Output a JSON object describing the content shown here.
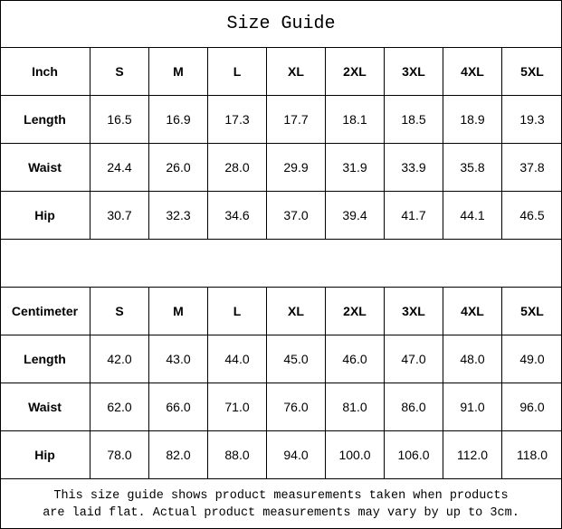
{
  "title": "Size Guide",
  "tables": [
    {
      "unit": "Inch",
      "sizes": [
        "S",
        "M",
        "L",
        "XL",
        "2XL",
        "3XL",
        "4XL",
        "5XL"
      ],
      "rows": [
        {
          "label": "Length",
          "values": [
            "16.5",
            "16.9",
            "17.3",
            "17.7",
            "18.1",
            "18.5",
            "18.9",
            "19.3"
          ]
        },
        {
          "label": "Waist",
          "values": [
            "24.4",
            "26.0",
            "28.0",
            "29.9",
            "31.9",
            "33.9",
            "35.8",
            "37.8"
          ]
        },
        {
          "label": "Hip",
          "values": [
            "30.7",
            "32.3",
            "34.6",
            "37.0",
            "39.4",
            "41.7",
            "44.1",
            "46.5"
          ]
        }
      ]
    },
    {
      "unit": "Centimeter",
      "sizes": [
        "S",
        "M",
        "L",
        "XL",
        "2XL",
        "3XL",
        "4XL",
        "5XL"
      ],
      "rows": [
        {
          "label": "Length",
          "values": [
            "42.0",
            "43.0",
            "44.0",
            "45.0",
            "46.0",
            "47.0",
            "48.0",
            "49.0"
          ]
        },
        {
          "label": "Waist",
          "values": [
            "62.0",
            "66.0",
            "71.0",
            "76.0",
            "81.0",
            "86.0",
            "91.0",
            "96.0"
          ]
        },
        {
          "label": "Hip",
          "values": [
            "78.0",
            "82.0",
            "88.0",
            "94.0",
            "100.0",
            "106.0",
            "112.0",
            "118.0"
          ]
        }
      ]
    }
  ],
  "footer": {
    "line1": "This size guide shows product measurements taken when products",
    "line2": "are laid flat. Actual product measurements may vary by up to 3cm."
  }
}
